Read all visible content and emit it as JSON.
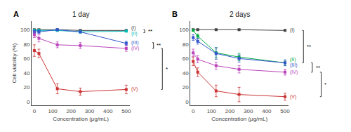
{
  "chart_data": [
    {
      "type": "line",
      "panel_label": "A",
      "title": "1 day",
      "x": [
        0,
        25,
        125,
        250,
        500
      ],
      "xlabel": "Concentration (μg/mL)",
      "ylabel": "Cell viability (%)",
      "series": [
        {
          "name": "(I)",
          "color": "#444444",
          "marker": "square",
          "values": [
            100,
            100,
            100,
            99,
            99
          ],
          "errors": [
            0.5,
            0.5,
            0.5,
            0.5,
            0.5
          ]
        },
        {
          "name": "(II)",
          "color": "#00BBBB",
          "marker": "square",
          "values": [
            99,
            99,
            99,
            97,
            98
          ],
          "errors": [
            1,
            1,
            1,
            2,
            1
          ]
        },
        {
          "name": "(III)",
          "color": "#3355CC",
          "marker": "square",
          "values": [
            97,
            97,
            100,
            97,
            81
          ],
          "errors": [
            2,
            2,
            1,
            1,
            3
          ]
        },
        {
          "name": "(IV)",
          "color": "#BB44BB",
          "marker": "square",
          "values": [
            93,
            88,
            79,
            78,
            74
          ],
          "errors": [
            4,
            5,
            4,
            4,
            4
          ]
        },
        {
          "name": "(V)",
          "color": "#CC3333",
          "marker": "square",
          "values": [
            71,
            67,
            18,
            14,
            17
          ],
          "errors": [
            8,
            6,
            7,
            5,
            6
          ]
        }
      ],
      "brackets": [
        {
          "y_low": 96,
          "y_high": 100,
          "label": "**"
        },
        {
          "y_low": 74,
          "y_high": 82,
          "label": "**"
        },
        {
          "y_low": 17,
          "y_high": 74,
          "label": "*"
        }
      ],
      "xlim": [
        -15,
        520
      ],
      "ylim": [
        -5,
        112
      ],
      "xticks": [
        0,
        100,
        200,
        300,
        400,
        500
      ],
      "yticks": [
        0,
        20,
        40,
        60,
        80,
        100
      ],
      "grid": false
    },
    {
      "type": "line",
      "panel_label": "B",
      "title": "2 days",
      "x": [
        0,
        25,
        125,
        250,
        500
      ],
      "xlabel": "Concentration (μg/mL)",
      "series": [
        {
          "name": "(I)",
          "color": "#444444",
          "marker": "square",
          "values": [
            100,
            100,
            100,
            100,
            99
          ],
          "errors": [
            0.5,
            0.5,
            0.5,
            0.5,
            0.5
          ]
        },
        {
          "name": "(II)",
          "color": "#00AA44",
          "marker": "square",
          "values": [
            99,
            91,
            68,
            62,
            54
          ],
          "errors": [
            1,
            3,
            7,
            5,
            4
          ]
        },
        {
          "name": "(III)",
          "color": "#3355CC",
          "marker": "square",
          "values": [
            89,
            84,
            67,
            60,
            54
          ],
          "errors": [
            4,
            4,
            8,
            5,
            4
          ]
        },
        {
          "name": "(IV)",
          "color": "#BB44BB",
          "marker": "square",
          "values": [
            68,
            59,
            50,
            45,
            41
          ],
          "errors": [
            5,
            5,
            5,
            5,
            4
          ]
        },
        {
          "name": "(V)",
          "color": "#CC3333",
          "marker": "square",
          "values": [
            56,
            41,
            15,
            10,
            7
          ],
          "errors": [
            6,
            6,
            8,
            10,
            5
          ]
        }
      ],
      "brackets": [
        {
          "y_low": 54,
          "y_high": 99,
          "label": "**"
        },
        {
          "y_low": 41,
          "y_high": 54,
          "label": "**"
        },
        {
          "y_low": 7,
          "y_high": 41,
          "label": "*"
        }
      ],
      "xlim": [
        -15,
        520
      ],
      "ylim": [
        -5,
        112
      ],
      "xticks": [
        0,
        100,
        200,
        300,
        400,
        500
      ],
      "yticks": [
        0,
        20,
        40,
        60,
        80,
        100
      ],
      "grid": false
    }
  ]
}
